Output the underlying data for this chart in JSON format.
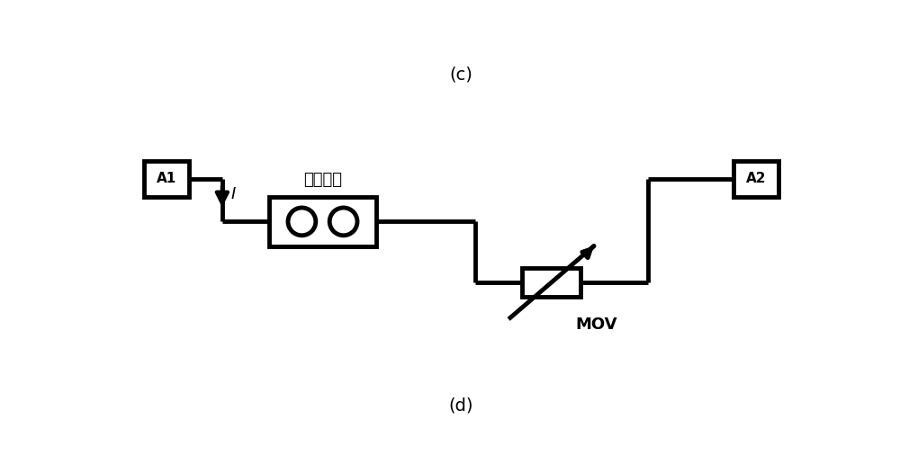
{
  "title_top": "(c)",
  "title_bottom": "(d)",
  "label_A1": "A1",
  "label_A2": "A2",
  "label_I": "I",
  "label_switch": "触发开关",
  "label_MOV": "MOV",
  "bg_color": "#ffffff",
  "line_color": "#000000",
  "line_width": 3.5,
  "fig_width": 10.0,
  "fig_height": 5.26
}
